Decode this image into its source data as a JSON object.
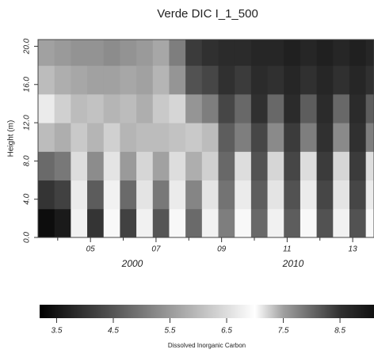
{
  "chart_data": {
    "type": "heatmap",
    "title": "Verde DIC I_1_500",
    "y_label": "Height (m)",
    "colorbar_label": "Dissolved Inorganic Carbon",
    "x_group_labels": [
      "2000",
      "2010"
    ],
    "xlim": [
      2003.4,
      2013.65
    ],
    "ylim": [
      0,
      20.7
    ],
    "xticks": [
      {
        "value": 2005,
        "label": "05"
      },
      {
        "value": 2007,
        "label": "07"
      },
      {
        "value": 2009,
        "label": "09"
      },
      {
        "value": 2011,
        "label": "11"
      },
      {
        "value": 2013,
        "label": "13"
      }
    ],
    "x_minor_ticks": [
      2004,
      2006,
      2008,
      2010,
      2012
    ],
    "yticks": [
      {
        "value": 0,
        "label": "0.0"
      },
      {
        "value": 4,
        "label": "4.0"
      },
      {
        "value": 8,
        "label": "8.0"
      },
      {
        "value": 12,
        "label": "12.0"
      },
      {
        "value": 16,
        "label": "16.0"
      },
      {
        "value": 20,
        "label": "20.0"
      }
    ],
    "x_edges": [
      2003.4,
      2003.9,
      2004.4,
      2004.9,
      2005.4,
      2005.9,
      2006.4,
      2006.9,
      2007.4,
      2007.9,
      2008.4,
      2008.9,
      2009.4,
      2009.9,
      2010.4,
      2010.9,
      2011.4,
      2011.9,
      2012.4,
      2012.9,
      2013.4,
      2013.65
    ],
    "y_edges": [
      0,
      3,
      6,
      9,
      12,
      15,
      18,
      20.7
    ],
    "z": [
      [
        3.4,
        3.6,
        6.8,
        4.0,
        6.9,
        4.2,
        6.8,
        4.5,
        6.9,
        4.8,
        6.8,
        7.8,
        6.9,
        8.0,
        6.8,
        8.1,
        6.9,
        8.2,
        6.8,
        8.2,
        6.9
      ],
      [
        4.0,
        4.2,
        6.7,
        4.6,
        6.8,
        4.8,
        6.6,
        5.0,
        6.7,
        5.2,
        6.6,
        7.9,
        6.7,
        8.1,
        6.6,
        8.2,
        6.7,
        8.3,
        6.6,
        8.3,
        6.7
      ],
      [
        4.8,
        5.0,
        6.5,
        5.3,
        6.6,
        5.5,
        6.4,
        5.6,
        6.5,
        5.8,
        6.3,
        8.0,
        6.5,
        8.2,
        6.4,
        8.3,
        6.5,
        8.4,
        6.4,
        8.4,
        6.5
      ],
      [
        6.0,
        5.8,
        6.2,
        5.9,
        6.3,
        5.9,
        6.0,
        6.0,
        6.1,
        6.2,
        6.0,
        8.1,
        7.8,
        8.3,
        7.7,
        8.4,
        7.8,
        8.5,
        7.7,
        8.5,
        7.8
      ],
      [
        6.7,
        6.3,
        6.0,
        6.1,
        5.9,
        6.0,
        5.8,
        6.2,
        6.4,
        7.6,
        7.8,
        8.3,
        8.0,
        8.5,
        8.0,
        8.6,
        8.1,
        8.6,
        8.0,
        8.6,
        8.1
      ],
      [
        6.0,
        5.8,
        5.7,
        5.6,
        5.6,
        5.7,
        5.6,
        5.9,
        7.6,
        8.2,
        8.3,
        8.5,
        8.4,
        8.6,
        8.5,
        8.7,
        8.5,
        8.7,
        8.5,
        8.7,
        8.5
      ],
      [
        5.6,
        5.5,
        5.4,
        5.4,
        5.3,
        5.4,
        5.5,
        5.7,
        7.8,
        8.4,
        8.5,
        8.6,
        8.6,
        8.7,
        8.7,
        8.8,
        8.7,
        8.8,
        8.7,
        8.8,
        8.7
      ]
    ],
    "colorscale": [
      [
        3.2,
        "#000000"
      ],
      [
        4.5,
        "#555555"
      ],
      [
        5.5,
        "#9a9a9a"
      ],
      [
        6.5,
        "#dddddd"
      ],
      [
        7.0,
        "#ffffff"
      ],
      [
        7.5,
        "#a0a0a0"
      ],
      [
        8.5,
        "#303030"
      ],
      [
        9.1,
        "#111111"
      ]
    ],
    "colorbar_ticks": [
      3.5,
      4.5,
      5.5,
      6.5,
      7.5,
      8.5
    ]
  }
}
